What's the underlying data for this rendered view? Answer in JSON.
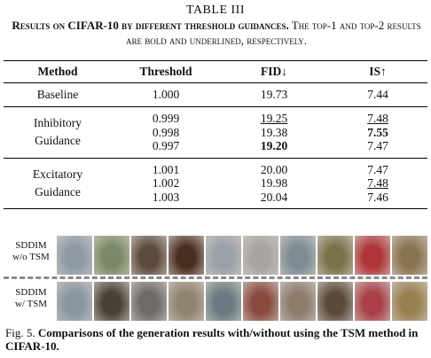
{
  "table": {
    "label": "TABLE III",
    "caption_bold": "Results on CIFAR-10 by different threshold guidances.",
    "caption_rest": "The top-1 and top-2 results are bold and underlined, respectively.",
    "headers": {
      "method": "Method",
      "threshold": "Threshold",
      "fid": "FID↓",
      "is": "IS↑"
    },
    "baseline": {
      "method": "Baseline",
      "threshold": "1.000",
      "fid": "19.73",
      "is": "7.44"
    },
    "inhibitory": {
      "method_line1": "Inhibitory",
      "method_line2": "Guidance",
      "rows": [
        {
          "threshold": "0.999",
          "fid": "19.25",
          "is": "7.48"
        },
        {
          "threshold": "0.998",
          "fid": "19.38",
          "is": "7.55"
        },
        {
          "threshold": "0.997",
          "fid": "19.20",
          "is": "7.47"
        }
      ]
    },
    "excitatory": {
      "method_line1": "Excitatory",
      "method_line2": "Guidance",
      "rows": [
        {
          "threshold": "1.001",
          "fid": "20.00",
          "is": "7.47"
        },
        {
          "threshold": "1.002",
          "fid": "19.98",
          "is": "7.48"
        },
        {
          "threshold": "1.003",
          "fid": "20.04",
          "is": "7.46"
        }
      ]
    }
  },
  "figure": {
    "row1_label_line1": "SDDIM",
    "row1_label_line2": "w/o TSM",
    "row2_label_line1": "SDDIM",
    "row2_label_line2": "w/ TSM",
    "caption_prefix": "Fig. 5.",
    "caption_text": "Comparisons of the generation results with/without using the TSM method in CIFAR-10."
  },
  "colors": {
    "row1": [
      "#8e9aa6",
      "#7a8a66",
      "#5b4b3c",
      "#4a2e20",
      "#9aa0a8",
      "#a8a4a0",
      "#7d8c94",
      "#7a7248",
      "#b03438",
      "#8a7450"
    ],
    "row2": [
      "#8a96a2",
      "#4a4034",
      "#6e6a66",
      "#908470",
      "#6a7a80",
      "#8a4a40",
      "#8c7c6c",
      "#5a4a3a",
      "#a84048",
      "#9a8050"
    ]
  }
}
